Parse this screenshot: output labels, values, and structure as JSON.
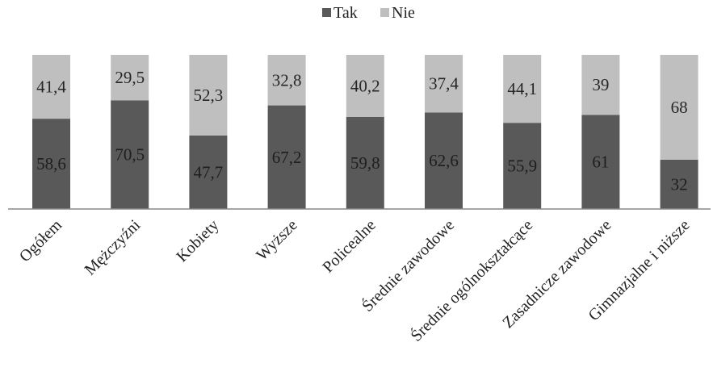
{
  "chart_data": {
    "type": "bar",
    "stacked": true,
    "categories": [
      "Ogółem",
      "Mężczyźni",
      "Kobiety",
      "Wyższe",
      "Policealne",
      "Średnie zawodowe",
      "Średnie ogólnokształcące",
      "Zasadnicze zawodowe",
      "Gimnazjalne i niższe"
    ],
    "series": [
      {
        "name": "Tak",
        "color": "#595959",
        "values": [
          58.6,
          70.5,
          47.7,
          67.2,
          59.8,
          62.6,
          55.9,
          61,
          32
        ],
        "labels": [
          "58,6",
          "70,5",
          "47,7",
          "67,2",
          "59,8",
          "62,6",
          "55,9",
          "61",
          "32"
        ]
      },
      {
        "name": "Nie",
        "color": "#bfbfbf",
        "values": [
          41.4,
          29.5,
          52.3,
          32.8,
          40.2,
          37.4,
          44.1,
          39,
          68
        ],
        "labels": [
          "41,4",
          "29,5",
          "52,3",
          "32,8",
          "40,2",
          "37,4",
          "44,1",
          "39",
          "68"
        ]
      }
    ],
    "ylim": [
      0,
      100
    ],
    "grid": false,
    "legend_position": "top-center"
  }
}
